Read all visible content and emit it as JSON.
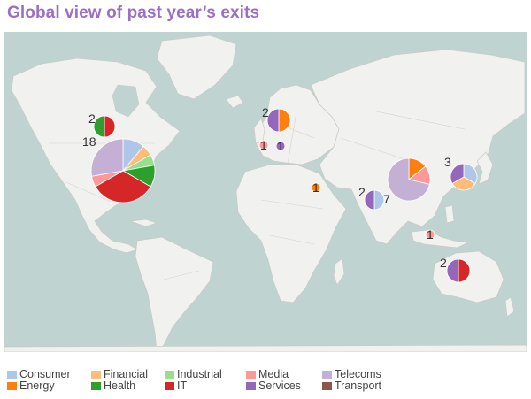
{
  "title": "Global view of past year’s exits",
  "colors": {
    "ocean": "#bfd3d1",
    "land": "#f1f1ef",
    "Consumer": "#aec7e8",
    "Energy": "#ff7f0e",
    "Financial": "#ffbb78",
    "Health": "#2ca02c",
    "Industrial": "#98df8a",
    "IT": "#d62728",
    "Media": "#ff9896",
    "Services": "#9467bd",
    "Telecoms": "#c5b0d5",
    "Transport": "#8c564b"
  },
  "legend": [
    {
      "key": "Consumer",
      "label": "Consumer"
    },
    {
      "key": "Energy",
      "label": "Energy"
    },
    {
      "key": "Financial",
      "label": "Financial"
    },
    {
      "key": "Health",
      "label": "Health"
    },
    {
      "key": "Industrial",
      "label": "Industrial"
    },
    {
      "key": "IT",
      "label": "IT"
    },
    {
      "key": "Media",
      "label": "Media"
    },
    {
      "key": "Services",
      "label": "Services"
    },
    {
      "key": "Telecoms",
      "label": "Telecoms"
    },
    {
      "key": "Transport",
      "label": "Transport"
    }
  ],
  "chart_data": {
    "type": "pie",
    "regions": [
      {
        "name": "canada",
        "label": "2",
        "total": 2,
        "slices": [
          {
            "sector": "IT",
            "value": 1
          },
          {
            "sector": "Health",
            "value": 1
          }
        ]
      },
      {
        "name": "usa",
        "label": "18",
        "total": 18,
        "slices": [
          {
            "sector": "Consumer",
            "value": 2
          },
          {
            "sector": "Financial",
            "value": 1
          },
          {
            "sector": "Industrial",
            "value": 1
          },
          {
            "sector": "Health",
            "value": 2
          },
          {
            "sector": "IT",
            "value": 6
          },
          {
            "sector": "Media",
            "value": 1
          },
          {
            "sector": "Telecoms",
            "value": 5
          }
        ]
      },
      {
        "name": "scandinavia",
        "label": "2",
        "total": 2,
        "slices": [
          {
            "sector": "Energy",
            "value": 1
          },
          {
            "sector": "Services",
            "value": 1
          }
        ]
      },
      {
        "name": "uk",
        "label": "1",
        "total": 1,
        "slices": [
          {
            "sector": "Media",
            "value": 1
          }
        ]
      },
      {
        "name": "central-europe",
        "label": "1",
        "total": 1,
        "slices": [
          {
            "sector": "Services",
            "value": 1
          }
        ]
      },
      {
        "name": "middle-east",
        "label": "1",
        "total": 1,
        "slices": [
          {
            "sector": "Energy",
            "value": 1
          }
        ]
      },
      {
        "name": "india",
        "label": "2",
        "total": 2,
        "slices": [
          {
            "sector": "Consumer",
            "value": 1
          },
          {
            "sector": "Services",
            "value": 1
          }
        ]
      },
      {
        "name": "china",
        "label": "7",
        "total": 7,
        "slices": [
          {
            "sector": "Energy",
            "value": 1
          },
          {
            "sector": "Media",
            "value": 1
          },
          {
            "sector": "Telecoms",
            "value": 5
          }
        ]
      },
      {
        "name": "japan-korea",
        "label": "3",
        "total": 3,
        "slices": [
          {
            "sector": "Consumer",
            "value": 1
          },
          {
            "sector": "Financial",
            "value": 1
          },
          {
            "sector": "Services",
            "value": 1
          }
        ]
      },
      {
        "name": "southeast-asia",
        "label": "1",
        "total": 1,
        "slices": [
          {
            "sector": "Media",
            "value": 1
          }
        ]
      },
      {
        "name": "australia",
        "label": "2",
        "total": 2,
        "slices": [
          {
            "sector": "IT",
            "value": 1
          },
          {
            "sector": "Services",
            "value": 1
          }
        ]
      }
    ]
  }
}
